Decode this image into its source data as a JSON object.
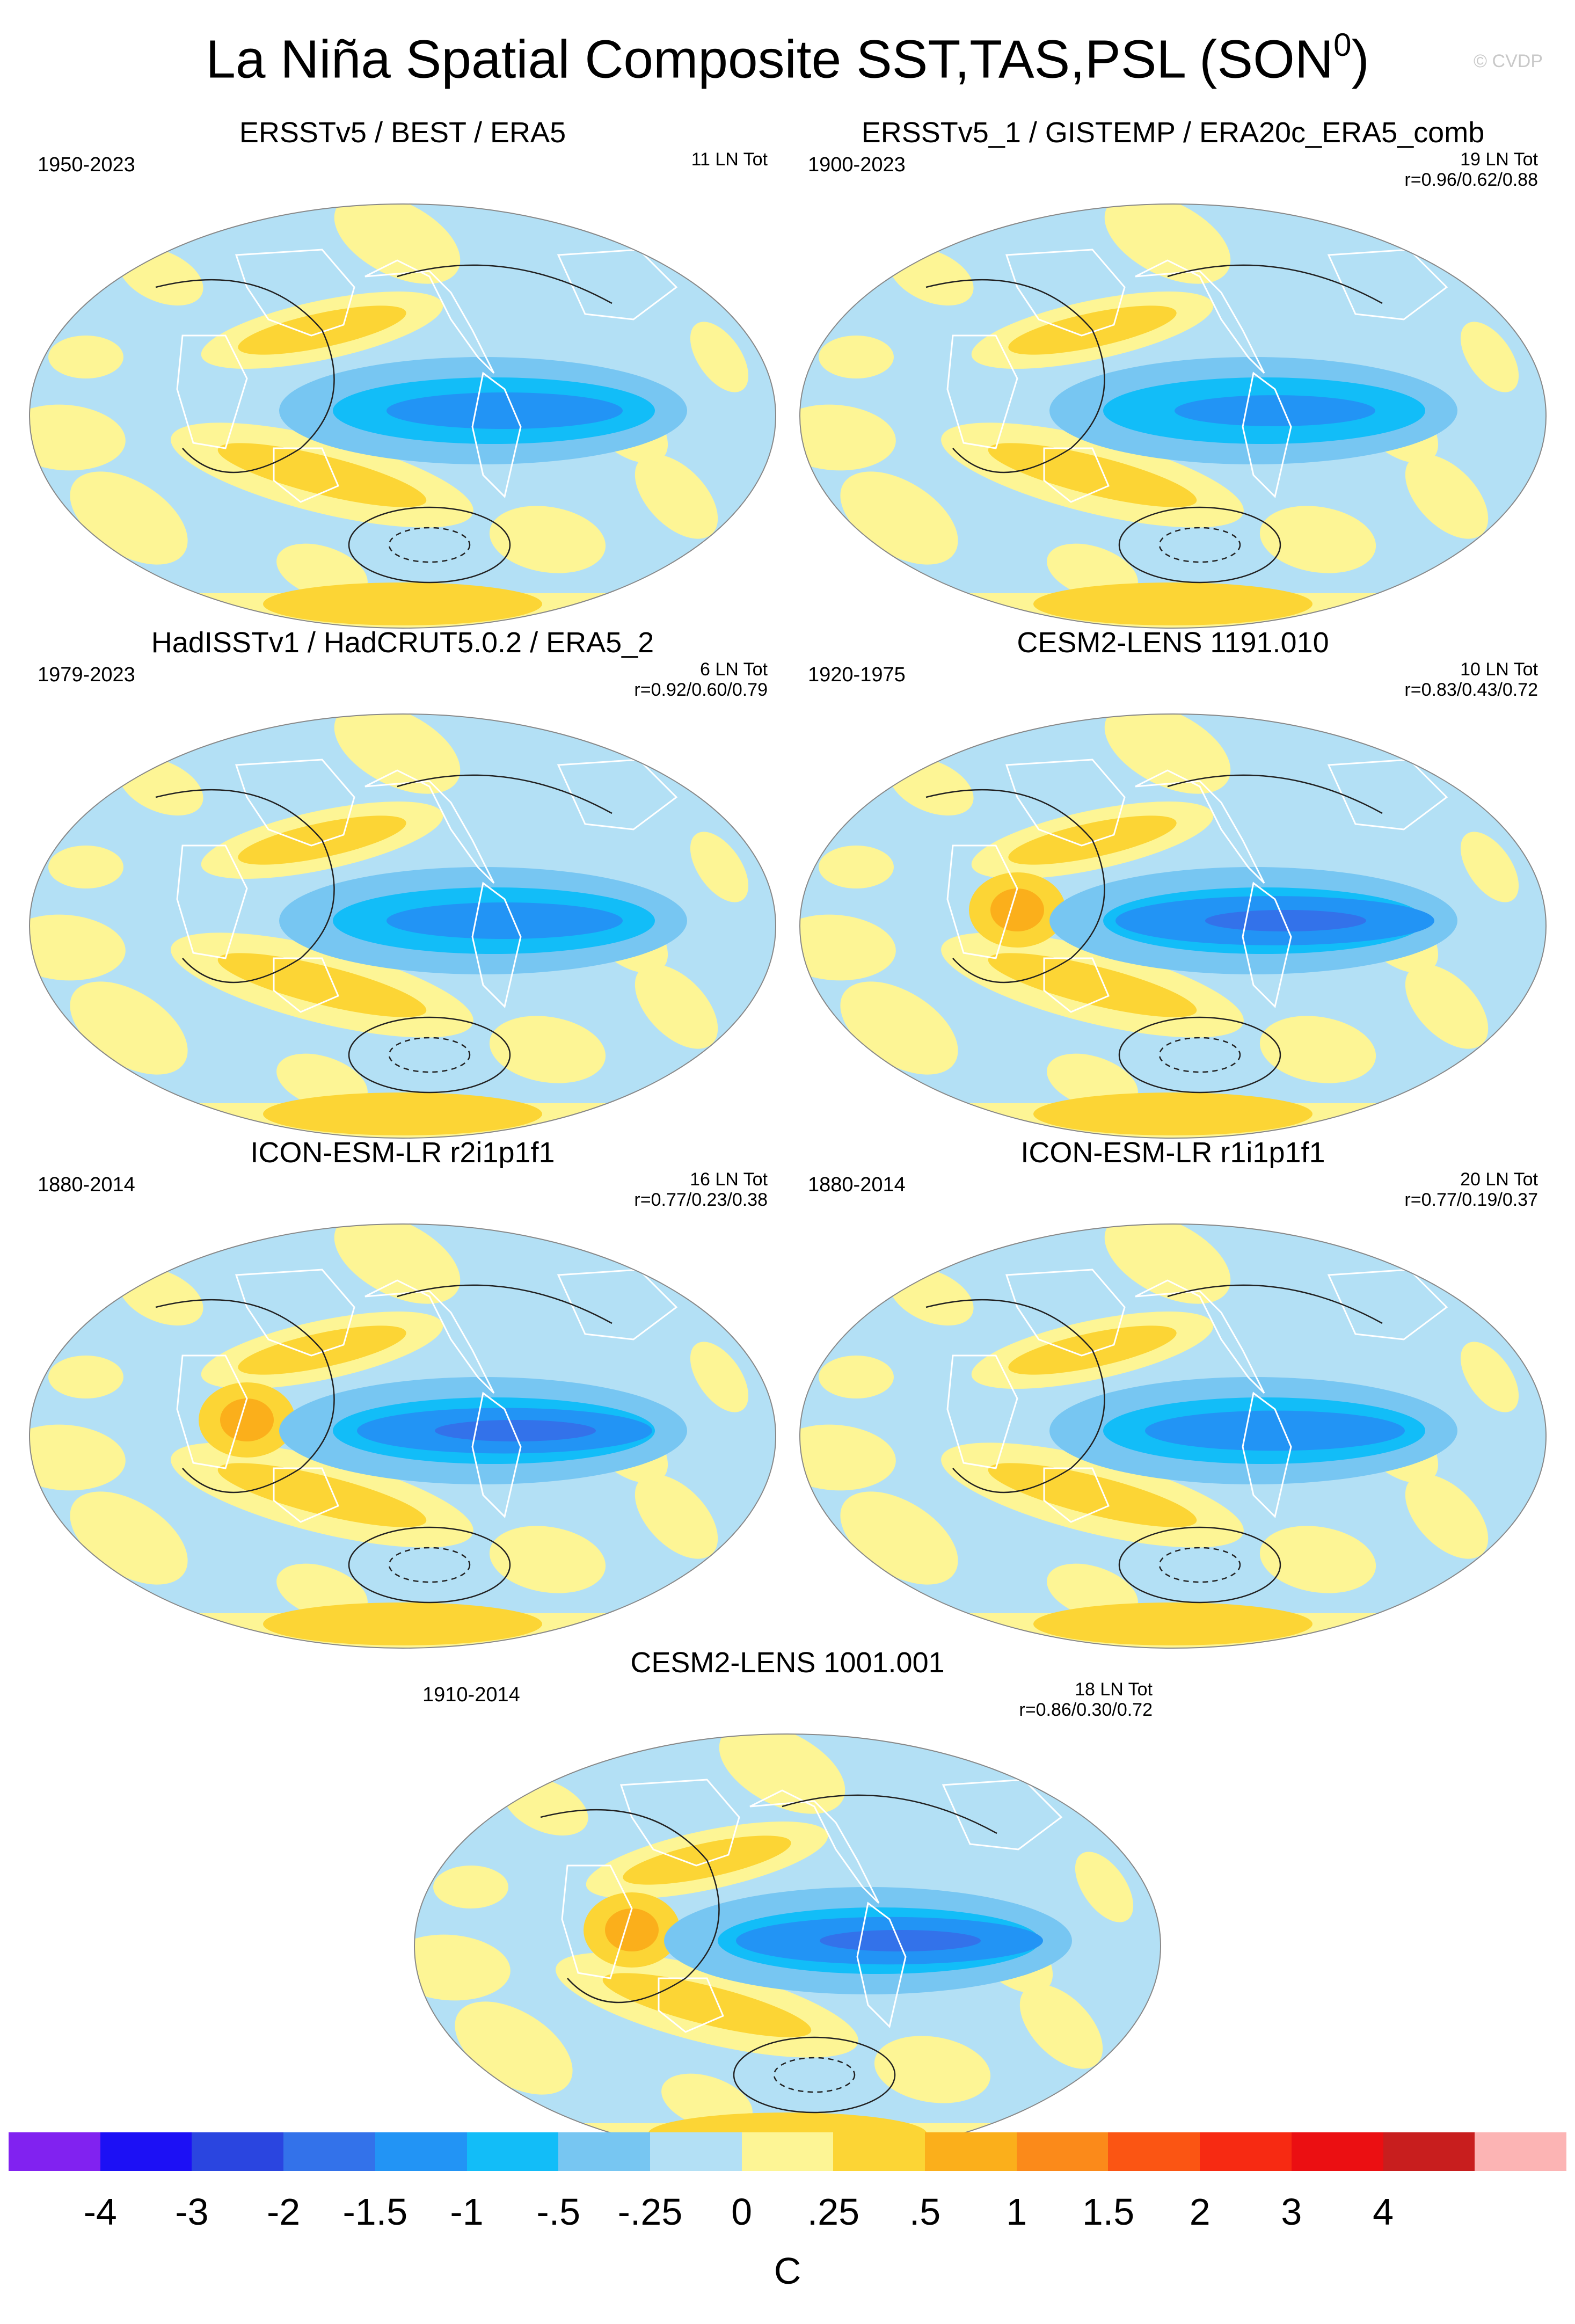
{
  "title": "La Niña Spatial Composite SST,TAS,PSL (SON",
  "title_sup": "0",
  "title_close": ")",
  "copyright": "© CVDP",
  "panels": [
    {
      "title": "ERSSTv5 / BEST / ERA5",
      "period": "1950-2023",
      "count": "11 LN Tot",
      "corr": "",
      "strength": 1.0
    },
    {
      "title": "ERSSTv5_1 / GISTEMP / ERA20c_ERA5_comb",
      "period": "1900-2023",
      "count": "19 LN Tot",
      "corr": "r=0.96/0.62/0.88",
      "strength": 0.85
    },
    {
      "title": "HadISSTv1 / HadCRUT5.0.2 / ERA5_2",
      "period": "1979-2023",
      "count": "6 LN Tot",
      "corr": "r=0.92/0.60/0.79",
      "strength": 1.0
    },
    {
      "title": "CESM2-LENS 1191.010",
      "period": "1920-1975",
      "count": "10 LN Tot",
      "corr": "r=0.83/0.43/0.72",
      "strength": 1.35
    },
    {
      "title": "ICON-ESM-LR r2i1p1f1",
      "period": "1880-2014",
      "count": "16 LN Tot",
      "corr": "r=0.77/0.23/0.38",
      "strength": 1.25
    },
    {
      "title": "ICON-ESM-LR r1i1p1f1",
      "period": "1880-2014",
      "count": "20 LN Tot",
      "corr": "r=0.77/0.19/0.37",
      "strength": 1.1
    },
    {
      "title": "CESM2-LENS 1001.001",
      "period": "1910-2014",
      "count": "18 LN Tot",
      "corr": "r=0.86/0.30/0.72",
      "strength": 1.3
    }
  ],
  "colorbar": {
    "colors": [
      "#8122f0",
      "#1c10f5",
      "#2a45e0",
      "#3372ea",
      "#2294f5",
      "#12bdf8",
      "#77c6f2",
      "#b3e0f5",
      "#fdf595",
      "#fcd535",
      "#fbaf1b",
      "#fb8a1a",
      "#fb5513",
      "#f72a12",
      "#eb0f12",
      "#c81e1e",
      "#fcb4b4"
    ],
    "labels": [
      "-4",
      "-3",
      "-2",
      "-1.5",
      "-1",
      "-.5",
      "-.25",
      "0",
      ".25",
      ".5",
      "1",
      "1.5",
      "2",
      "3",
      "4"
    ],
    "unit": "C"
  }
}
